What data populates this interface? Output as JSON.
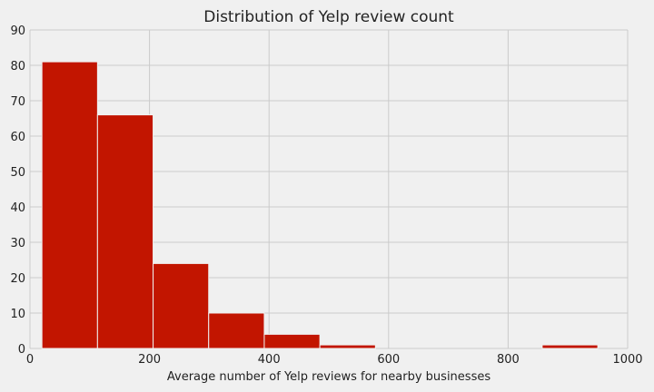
{
  "chart_data": {
    "type": "bar",
    "title": "Distribution of Yelp review count",
    "xlabel": "Average number of Yelp reviews for nearby businesses",
    "ylabel": "",
    "xlim": [
      0,
      1000
    ],
    "ylim": [
      0,
      90
    ],
    "xticks": [
      0,
      200,
      400,
      600,
      800,
      1000
    ],
    "yticks": [
      0,
      10,
      20,
      30,
      40,
      50,
      60,
      70,
      80,
      90
    ],
    "bins": [
      {
        "start": 20,
        "end": 113,
        "count": 81
      },
      {
        "start": 113,
        "end": 206,
        "count": 66
      },
      {
        "start": 206,
        "end": 299,
        "count": 24
      },
      {
        "start": 299,
        "end": 392,
        "count": 10
      },
      {
        "start": 392,
        "end": 485,
        "count": 4
      },
      {
        "start": 485,
        "end": 578,
        "count": 1
      },
      {
        "start": 578,
        "end": 671,
        "count": 0
      },
      {
        "start": 671,
        "end": 764,
        "count": 0
      },
      {
        "start": 764,
        "end": 857,
        "count": 0
      },
      {
        "start": 857,
        "end": 950,
        "count": 1
      }
    ],
    "grid": true,
    "colors": {
      "bar": "#c21500",
      "bar_edge": "#f0f0f0",
      "background": "#f0f0f0",
      "grid": "#cbcbcb",
      "text": "#222222"
    }
  }
}
